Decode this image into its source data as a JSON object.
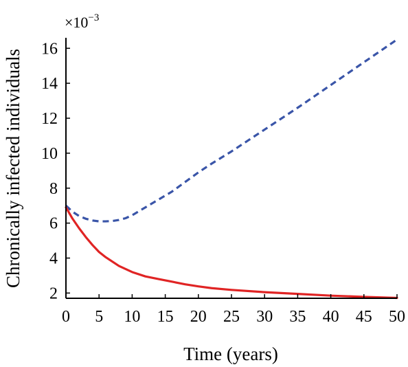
{
  "chart_data": {
    "type": "line",
    "xlabel": "Time (years)",
    "ylabel": "Chronically infected individuals",
    "y_multiplier": "×10",
    "y_multiplier_exponent": "−3",
    "xlim": [
      0,
      50
    ],
    "ylim": [
      1.7,
      16.6
    ],
    "xticks": [
      0,
      5,
      10,
      15,
      20,
      25,
      30,
      35,
      40,
      45,
      50
    ],
    "yticks": [
      2,
      4,
      6,
      8,
      10,
      12,
      14,
      16
    ],
    "grid": false,
    "legend": false,
    "series": [
      {
        "color": "#3a55a8",
        "style": "dashed",
        "x": [
          0,
          1,
          2,
          3,
          4,
          5,
          6,
          7,
          8,
          9,
          10,
          12,
          14,
          16,
          18,
          20,
          22,
          25,
          30,
          35,
          40,
          45,
          50
        ],
        "y": [
          7.0,
          6.65,
          6.4,
          6.25,
          6.15,
          6.1,
          6.1,
          6.12,
          6.18,
          6.28,
          6.45,
          6.9,
          7.35,
          7.8,
          8.35,
          8.9,
          9.4,
          10.1,
          11.35,
          12.6,
          13.9,
          15.2,
          16.5
        ]
      },
      {
        "color": "#e02424",
        "style": "solid",
        "x": [
          0,
          1,
          2,
          3,
          4,
          5,
          6,
          7,
          8,
          10,
          12,
          14,
          16,
          18,
          20,
          22,
          25,
          30,
          35,
          40,
          45,
          50
        ],
        "y": [
          6.9,
          6.25,
          5.7,
          5.2,
          4.75,
          4.35,
          4.05,
          3.8,
          3.55,
          3.2,
          2.95,
          2.8,
          2.65,
          2.5,
          2.38,
          2.28,
          2.18,
          2.05,
          1.95,
          1.85,
          1.78,
          1.72
        ]
      }
    ]
  }
}
